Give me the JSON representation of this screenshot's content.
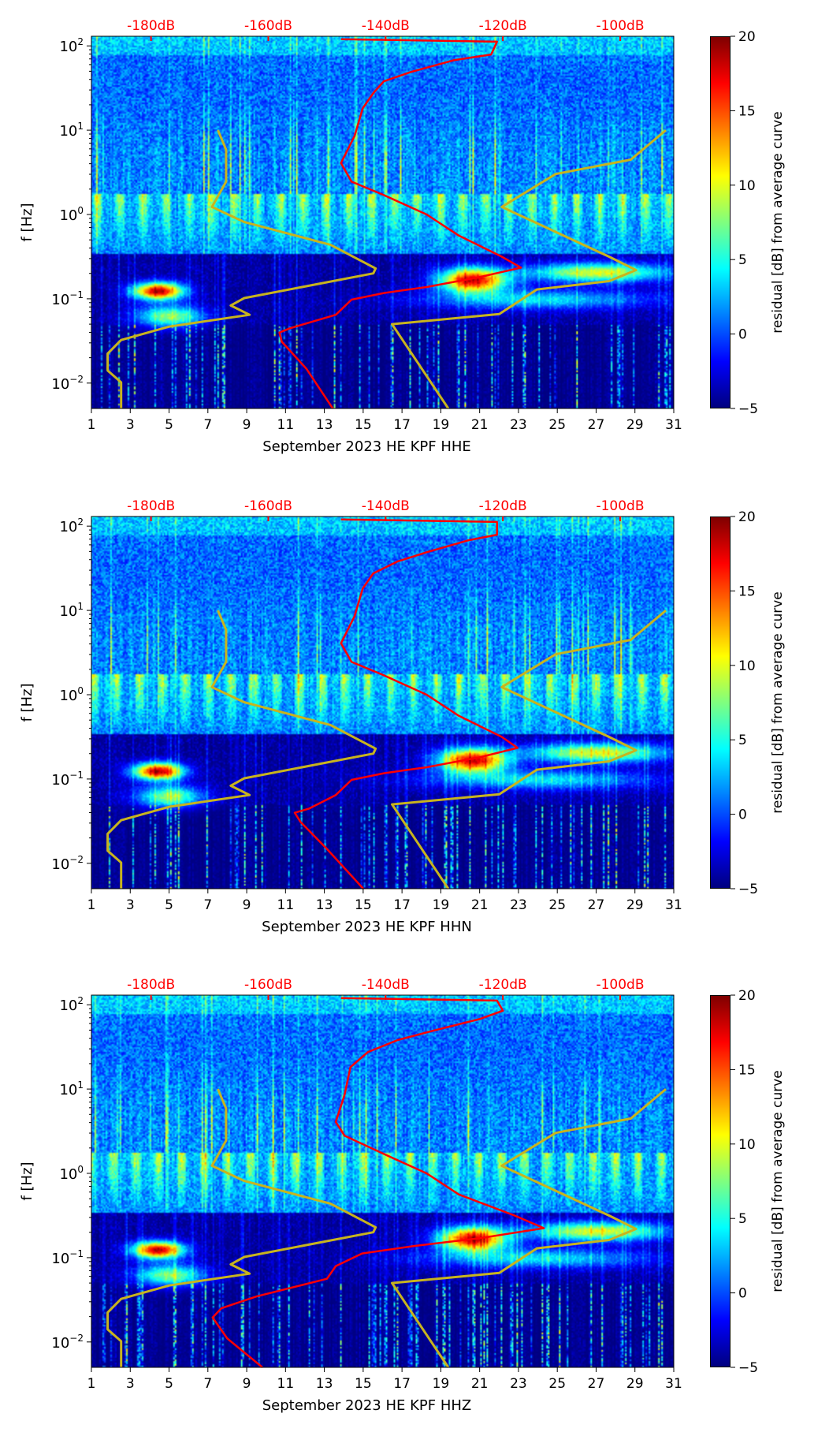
{
  "shared": {
    "x_ticks": [
      1,
      3,
      5,
      7,
      9,
      11,
      13,
      15,
      17,
      19,
      21,
      23,
      25,
      27,
      29,
      31
    ],
    "xlim": [
      1,
      31
    ],
    "ylim": [
      0.005,
      130
    ],
    "y_scale": "log",
    "y_tick_base": "10",
    "y_tick_exponents": [
      -2,
      -1,
      0,
      1,
      2
    ],
    "ylabel": "f [Hz]",
    "top_axis_ticks": [
      "-180dB",
      "-160dB",
      "-140dB",
      "-120dB",
      "-100dB"
    ],
    "top_axis_values_db": [
      -180,
      -160,
      -140,
      -120,
      -100
    ],
    "colorbar": {
      "label": "residual [dB] from average curve",
      "range": [
        -5,
        20
      ],
      "ticks": [
        -5,
        0,
        5,
        10,
        15,
        20
      ],
      "colormap": "jet"
    },
    "colors": {
      "average_curve": "#ff0000",
      "noise_model": "#c8b41e",
      "db_labels": "#ff0000"
    },
    "low_noise_model": [
      [
        -185.1,
        0.005
      ],
      [
        -185.1,
        0.0102
      ],
      [
        -187.4,
        0.0141
      ],
      [
        -187.4,
        0.0224
      ],
      [
        -185.1,
        0.0324
      ],
      [
        -176.9,
        0.0468
      ],
      [
        -163.2,
        0.0646
      ],
      [
        -166.4,
        0.0832
      ],
      [
        -164.1,
        0.102
      ],
      [
        -142.1,
        0.2
      ],
      [
        -141.7,
        0.229
      ],
      [
        -149.4,
        0.437
      ],
      [
        -164.1,
        0.813
      ],
      [
        -169.6,
        1.23
      ],
      [
        -167.2,
        2.45
      ],
      [
        -167.2,
        5.89
      ],
      [
        -168.6,
        10
      ]
    ],
    "high_noise_model": [
      [
        -129.3,
        0.005
      ],
      [
        -138.9,
        0.05
      ],
      [
        -120.6,
        0.066
      ],
      [
        -114.2,
        0.129
      ],
      [
        -101.9,
        0.162
      ],
      [
        -97.3,
        0.219
      ],
      [
        -101.9,
        0.316
      ],
      [
        -120.2,
        1.23
      ],
      [
        -111,
        3.02
      ],
      [
        -98.2,
        4.47
      ],
      [
        -92.2,
        10
      ]
    ]
  },
  "chart_data": [
    {
      "type": "heatmap",
      "xlabel": "September 2023 HE KPF  HHE",
      "seed": 1,
      "average_curve": [
        [
          -149,
          0.005
        ],
        [
          -153.5,
          0.0148
        ],
        [
          -157.7,
          0.0309
        ],
        [
          -158.1,
          0.0398
        ],
        [
          -156.3,
          0.0447
        ],
        [
          -148.5,
          0.0646
        ],
        [
          -145.8,
          0.0977
        ],
        [
          -140.3,
          0.117
        ],
        [
          -133,
          0.138
        ],
        [
          -123.8,
          0.182
        ],
        [
          -116.9,
          0.234
        ],
        [
          -120.2,
          0.316
        ],
        [
          -127.5,
          0.562
        ],
        [
          -133,
          1.0
        ],
        [
          -140.3,
          1.7
        ],
        [
          -145.8,
          2.45
        ],
        [
          -147.6,
          4.07
        ],
        [
          -145.3,
          8.5
        ],
        [
          -143.9,
          18.2
        ],
        [
          -142.1,
          27.5
        ],
        [
          -140.3,
          38
        ],
        [
          -135.7,
          49
        ],
        [
          -128.4,
          67.6
        ],
        [
          -122,
          79
        ],
        [
          -121,
          112
        ],
        [
          -147.6,
          120
        ]
      ]
    },
    {
      "type": "heatmap",
      "xlabel": "September 2023 HE KPF  HHN",
      "seed": 2,
      "average_curve": [
        [
          -143.8,
          0.005
        ],
        [
          -150,
          0.0148
        ],
        [
          -154.5,
          0.0309
        ],
        [
          -155.5,
          0.0398
        ],
        [
          -153,
          0.0447
        ],
        [
          -148.5,
          0.0646
        ],
        [
          -145.8,
          0.0977
        ],
        [
          -140.3,
          0.117
        ],
        [
          -133,
          0.138
        ],
        [
          -123.8,
          0.182
        ],
        [
          -117.5,
          0.234
        ],
        [
          -120.2,
          0.316
        ],
        [
          -127.5,
          0.562
        ],
        [
          -133,
          1.0
        ],
        [
          -140.3,
          1.7
        ],
        [
          -145.8,
          2.45
        ],
        [
          -147.6,
          4.07
        ],
        [
          -145.3,
          8.5
        ],
        [
          -143.9,
          18.2
        ],
        [
          -142.1,
          27.5
        ],
        [
          -138,
          38
        ],
        [
          -133,
          49
        ],
        [
          -126,
          67.6
        ],
        [
          -121,
          79
        ],
        [
          -121,
          112
        ],
        [
          -147.6,
          120
        ]
      ]
    },
    {
      "type": "heatmap",
      "xlabel": "September 2023 HE KPF  HHZ",
      "seed": 3,
      "average_curve": [
        [
          -161,
          0.005
        ],
        [
          -167,
          0.011
        ],
        [
          -169.5,
          0.0195
        ],
        [
          -168,
          0.0251
        ],
        [
          -162,
          0.0347
        ],
        [
          -150,
          0.0562
        ],
        [
          -148.5,
          0.0794
        ],
        [
          -144,
          0.112
        ],
        [
          -135,
          0.138
        ],
        [
          -124,
          0.17
        ],
        [
          -113,
          0.224
        ],
        [
          -118,
          0.316
        ],
        [
          -127.5,
          0.562
        ],
        [
          -133,
          1.0
        ],
        [
          -140.3,
          1.7
        ],
        [
          -147,
          2.8
        ],
        [
          -148.5,
          4.07
        ],
        [
          -147,
          8.5
        ],
        [
          -146,
          18.2
        ],
        [
          -143,
          27.5
        ],
        [
          -138,
          38
        ],
        [
          -132,
          49
        ],
        [
          -124,
          67.6
        ],
        [
          -120,
          85
        ],
        [
          -121,
          112
        ],
        [
          -147.6,
          120
        ]
      ]
    }
  ]
}
